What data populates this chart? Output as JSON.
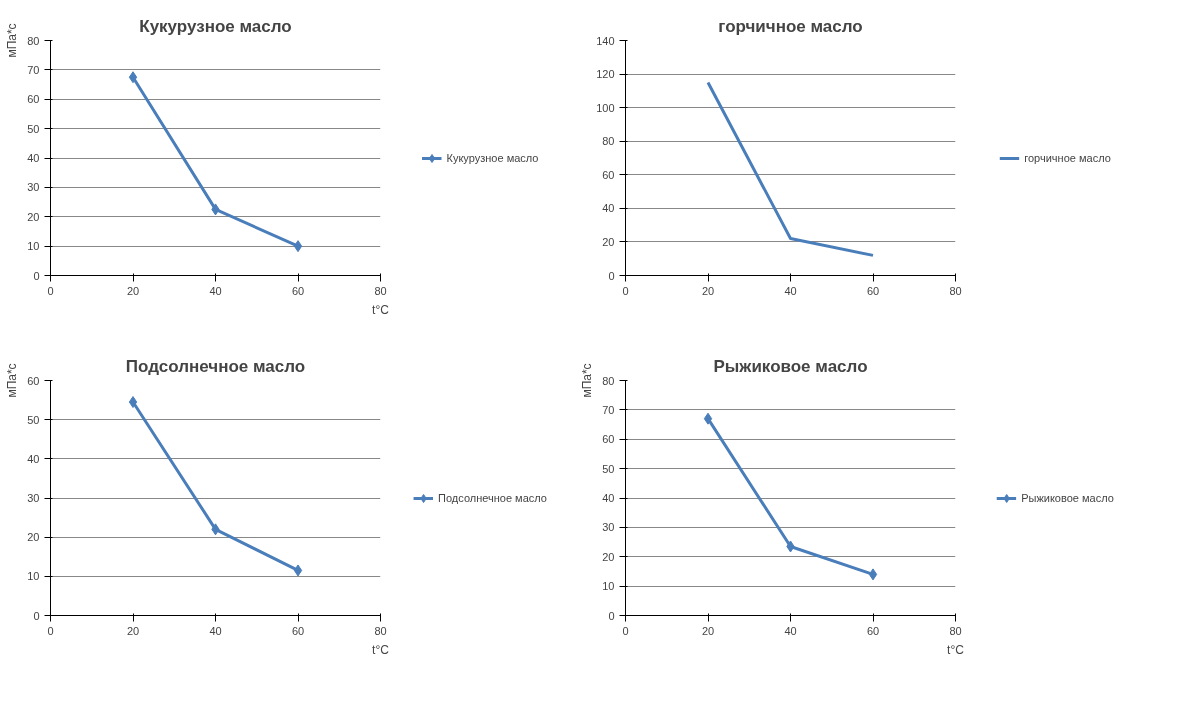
{
  "chart_data": [
    {
      "type": "line",
      "title": "Кукурузное масло",
      "ylabel": "мПа*с",
      "xlabel": "t°C",
      "x": [
        20,
        40,
        60
      ],
      "series": [
        {
          "name": "Кукурузное масло",
          "color": "#4a7ebb",
          "values": [
            67.5,
            22.5,
            10
          ]
        }
      ],
      "xlim": [
        0,
        80
      ],
      "xticks": [
        0,
        20,
        40,
        60,
        80
      ],
      "ylim": [
        0,
        80
      ],
      "yticks": [
        0,
        10,
        20,
        30,
        40,
        50,
        60,
        70,
        80
      ],
      "grid": "y",
      "legend": "right",
      "marker": "diamond",
      "line_style": "solid"
    },
    {
      "type": "line",
      "title": "горчичное масло",
      "x": [
        20,
        40,
        60
      ],
      "series": [
        {
          "name": "горчичное масло",
          "color": "#4a7ebb",
          "values": [
            115,
            22,
            12
          ]
        }
      ],
      "xlim": [
        0,
        80
      ],
      "xticks": [
        0,
        20,
        40,
        60,
        80
      ],
      "ylim": [
        0,
        140
      ],
      "yticks": [
        0,
        20,
        40,
        60,
        80,
        100,
        120,
        140
      ],
      "grid": "y",
      "legend": "right",
      "line_style": "solid"
    },
    {
      "type": "line",
      "title": "Подсолнечное масло",
      "ylabel": "мПа*с",
      "xlabel": "t°C",
      "x": [
        20,
        40,
        60
      ],
      "series": [
        {
          "name": "Подсолнечное масло",
          "color": "#4a7ebb",
          "values": [
            54.5,
            22,
            11.5
          ]
        }
      ],
      "xlim": [
        0,
        80
      ],
      "xticks": [
        0,
        20,
        40,
        60,
        80
      ],
      "ylim": [
        0,
        60
      ],
      "yticks": [
        0,
        10,
        20,
        30,
        40,
        50,
        60
      ],
      "grid": "y",
      "legend": "right",
      "marker": "diamond",
      "line_style": "solid"
    },
    {
      "type": "line",
      "title": "Рыжиковое масло",
      "ylabel": "мПа*с",
      "xlabel": "t°C",
      "x": [
        20,
        40,
        60
      ],
      "series": [
        {
          "name": "Рыжиковое масло",
          "color": "#4a7ebb",
          "values": [
            67,
            23.5,
            14
          ]
        }
      ],
      "xlim": [
        0,
        80
      ],
      "xticks": [
        0,
        20,
        40,
        60,
        80
      ],
      "ylim": [
        0,
        80
      ],
      "yticks": [
        0,
        10,
        20,
        30,
        40,
        50,
        60,
        70,
        80
      ],
      "grid": "y",
      "legend": "right",
      "marker": "diamond",
      "line_style": "solid"
    }
  ]
}
